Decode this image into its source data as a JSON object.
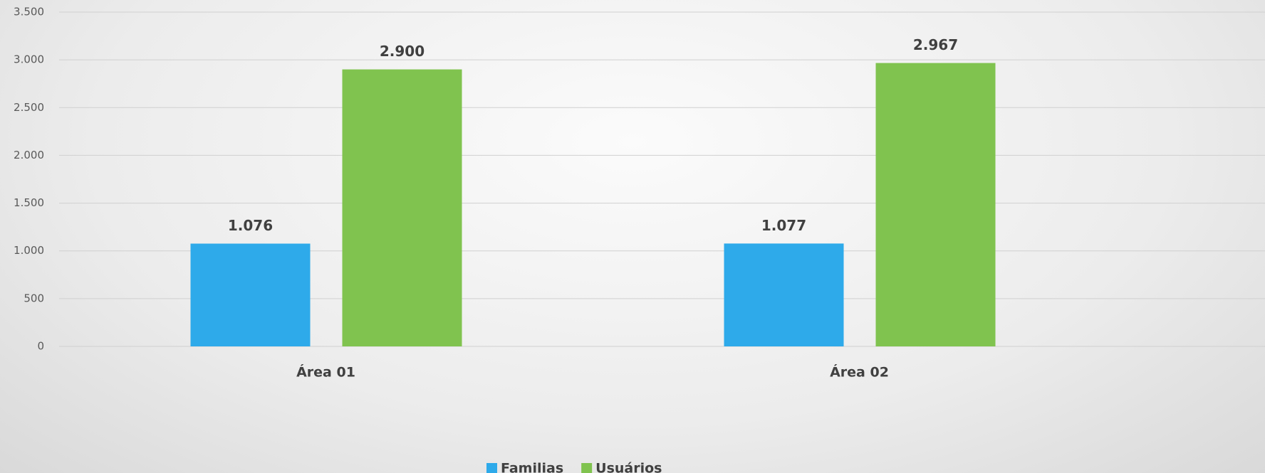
{
  "chart_data": {
    "type": "bar",
    "categories": [
      "Área 01",
      "Área 02"
    ],
    "series": [
      {
        "name": "Familias",
        "color": "#2eaaea",
        "values": [
          1076,
          1077
        ],
        "value_labels": [
          "1.076",
          "1.077"
        ]
      },
      {
        "name": "Usuários",
        "color": "#80c34f",
        "values": [
          2900,
          2967
        ],
        "value_labels": [
          "2.900",
          "2.967"
        ]
      }
    ],
    "ylim": [
      0,
      3500
    ],
    "yticks": [
      0,
      500,
      {
        "value": 1000,
        "label": "1.000"
      },
      {
        "value": 1500,
        "label": "1.500"
      },
      {
        "value": 2000,
        "label": "2.000"
      },
      {
        "value": 2500,
        "label": "2.500"
      },
      {
        "value": 3000,
        "label": "3.000"
      },
      {
        "value": 3500,
        "label": "3.500"
      }
    ],
    "grid": true,
    "legend": "bottom"
  }
}
